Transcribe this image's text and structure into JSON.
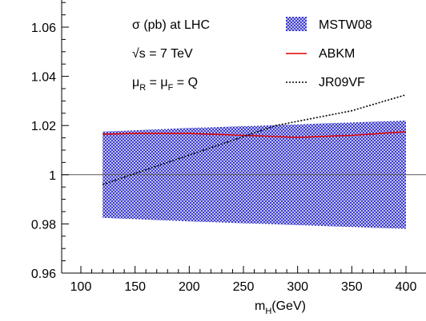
{
  "chart_data": {
    "type": "line",
    "x": [
      120,
      150,
      200,
      250,
      280,
      300,
      350,
      400
    ],
    "xlim": [
      100,
      400
    ],
    "ylim": [
      0.96,
      1.07
    ],
    "xticks": [
      "100",
      "150",
      "200",
      "250",
      "300",
      "350",
      "400"
    ],
    "yticks": [
      "0.96",
      "0.98",
      "1",
      "1.02",
      "1.04",
      "1.06"
    ],
    "xtick_values": [
      100,
      150,
      200,
      250,
      300,
      350,
      400
    ],
    "ytick_values": [
      0.96,
      0.98,
      1.0,
      1.02,
      1.04,
      1.06
    ],
    "xlabel": {
      "main": "m",
      "sub": "H",
      "rest": "(GeV)"
    },
    "ylabel": "",
    "reference_line": 1.0,
    "annotations": {
      "line1": "σ (pb) at LHC",
      "line2_root": "√",
      "line2_rest": "s = 7 TeV",
      "line3": {
        "mu": "μ",
        "sub1": "R",
        "mid": " = μ",
        "sub2": "F",
        "end": " = Q"
      }
    },
    "series": [
      {
        "name": "MSTW08",
        "style": "band",
        "x": [
          120,
          200,
          300,
          400
        ],
        "upper": [
          1.0175,
          1.019,
          1.0205,
          1.022
        ],
        "lower": [
          0.9825,
          0.981,
          0.9795,
          0.978
        ],
        "color": "#3333cc"
      },
      {
        "name": "ABKM",
        "style": "solid",
        "x": [
          120,
          150,
          200,
          250,
          300,
          350,
          400
        ],
        "values": [
          1.0165,
          1.0168,
          1.0168,
          1.016,
          1.0152,
          1.016,
          1.0175
        ],
        "color": "#dd0000"
      },
      {
        "name": "JR09VF",
        "style": "dotted",
        "x": [
          120,
          200,
          280,
          350,
          400
        ],
        "values": [
          0.996,
          1.008,
          1.02,
          1.026,
          1.0325
        ],
        "color": "#000000"
      }
    ],
    "legend_position": "top-right",
    "grid": false
  }
}
